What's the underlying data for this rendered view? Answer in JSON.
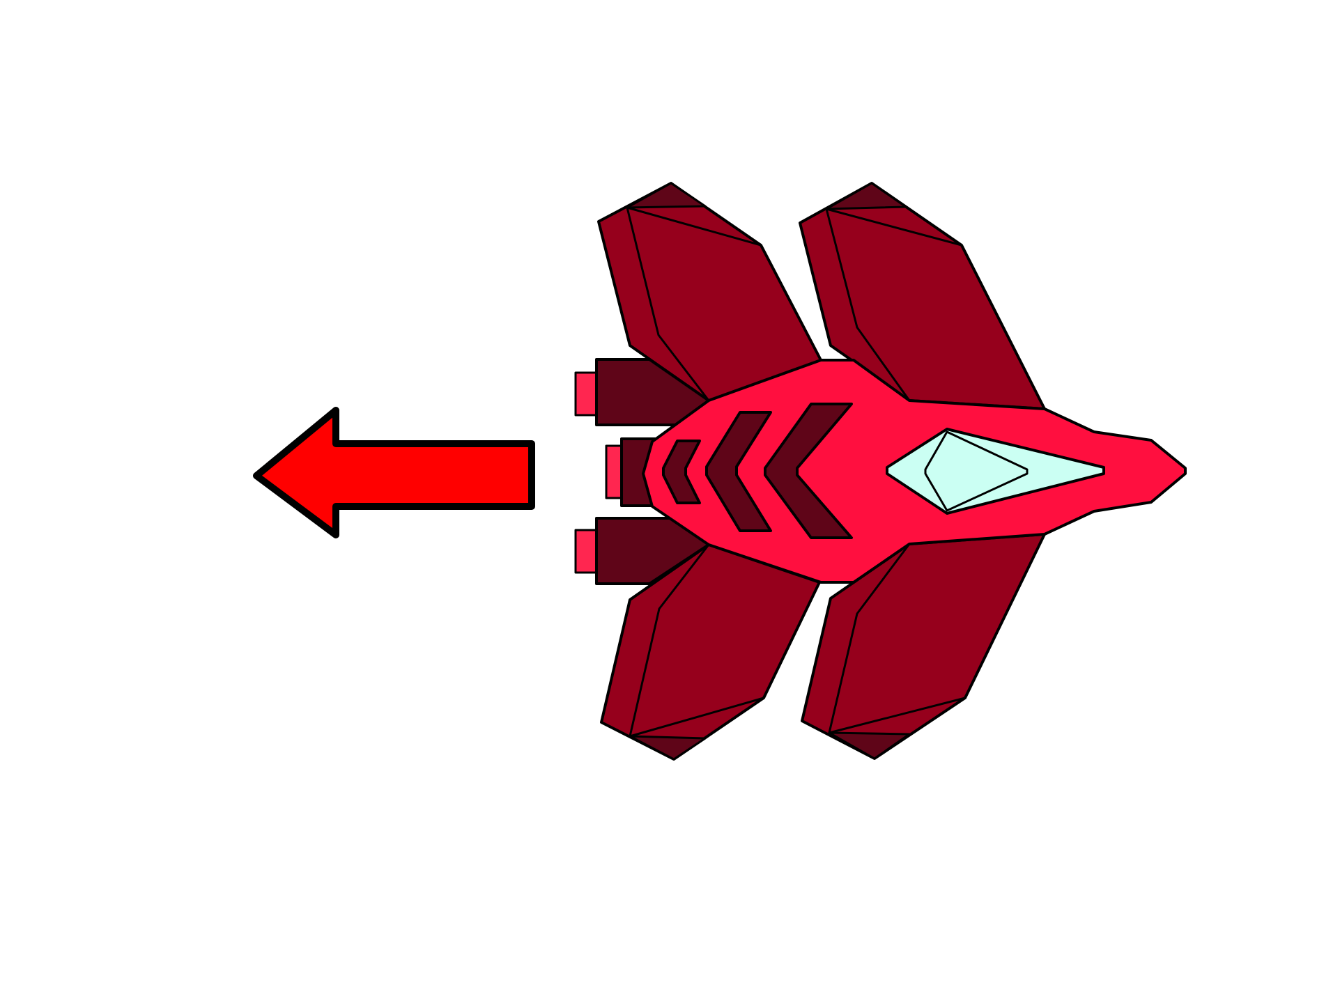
{
  "scene": {
    "background": "#ffffff",
    "direction_arrow": {
      "icon": "left-arrow-icon",
      "direction": "left",
      "fill": "#ff0000",
      "outline": "#000000"
    },
    "spaceship": {
      "icon": "red-spaceship-icon",
      "facing": "right",
      "colors": {
        "hull": "#ff0f3f",
        "wing": "#96001c",
        "wing_dark": "#5f0518",
        "engine": "#5f0518",
        "thruster_tip": "#ff2650",
        "chevron": "#5f0518",
        "cockpit": "#cbfff3",
        "outline": "#000000"
      }
    }
  }
}
